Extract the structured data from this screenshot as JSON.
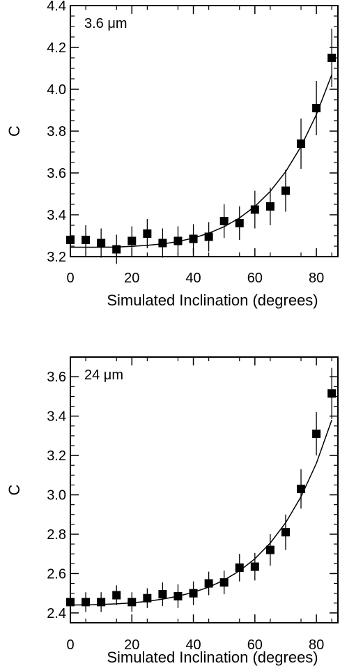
{
  "chart_data": [
    {
      "type": "scatter",
      "panel_label": "3.6 μm",
      "xlabel": "Simulated Inclination (degrees)",
      "ylabel": "C",
      "xlim": [
        0,
        87
      ],
      "ylim": [
        3.2,
        4.4
      ],
      "x_ticks": [
        0,
        20,
        40,
        60,
        80
      ],
      "y_ticks": [
        3.2,
        3.4,
        3.6,
        3.8,
        4.0,
        4.2,
        4.4
      ],
      "y_tick_labels": [
        "3.2",
        "3.4",
        "3.6",
        "3.8",
        "4.0",
        "4.2",
        "4.4"
      ],
      "series": [
        {
          "marker": "filled-square",
          "x": [
            0,
            5,
            10,
            15,
            20,
            25,
            30,
            35,
            40,
            45,
            50,
            55,
            60,
            65,
            70,
            75,
            80,
            85
          ],
          "y": [
            3.28,
            3.28,
            3.265,
            3.235,
            3.275,
            3.31,
            3.265,
            3.275,
            3.285,
            3.295,
            3.37,
            3.36,
            3.425,
            3.44,
            3.515,
            3.74,
            3.91,
            4.15
          ],
          "yerr": [
            0.06,
            0.07,
            0.07,
            0.07,
            0.07,
            0.07,
            0.07,
            0.07,
            0.07,
            0.07,
            0.08,
            0.08,
            0.09,
            0.09,
            0.1,
            0.12,
            0.13,
            0.14
          ]
        }
      ],
      "fit_curve": {
        "x": [
          0,
          5,
          10,
          15,
          20,
          25,
          30,
          35,
          40,
          45,
          50,
          55,
          60,
          65,
          70,
          75,
          80,
          85
        ],
        "y": [
          3.245,
          3.245,
          3.245,
          3.246,
          3.249,
          3.254,
          3.261,
          3.272,
          3.289,
          3.312,
          3.343,
          3.385,
          3.44,
          3.512,
          3.606,
          3.726,
          3.879,
          4.07
        ]
      }
    },
    {
      "type": "scatter",
      "panel_label": "24 μm",
      "xlabel": "Simulated Inclination (degrees)",
      "ylabel": "C",
      "xlim": [
        0,
        87
      ],
      "ylim": [
        2.35,
        3.7
      ],
      "x_ticks": [
        0,
        20,
        40,
        60,
        80
      ],
      "y_ticks": [
        2.4,
        2.6,
        2.8,
        3.0,
        3.2,
        3.4,
        3.6
      ],
      "y_tick_labels": [
        "2.4",
        "2.6",
        "2.8",
        "3.0",
        "3.2",
        "3.4",
        "3.6"
      ],
      "series": [
        {
          "marker": "filled-square",
          "x": [
            0,
            5,
            10,
            15,
            20,
            25,
            30,
            35,
            40,
            45,
            50,
            55,
            60,
            65,
            70,
            75,
            80,
            85
          ],
          "y": [
            2.455,
            2.455,
            2.455,
            2.49,
            2.455,
            2.475,
            2.495,
            2.485,
            2.5,
            2.55,
            2.555,
            2.63,
            2.635,
            2.72,
            2.81,
            3.03,
            3.31,
            3.515
          ],
          "yerr": [
            0.05,
            0.05,
            0.05,
            0.05,
            0.05,
            0.05,
            0.06,
            0.06,
            0.06,
            0.06,
            0.06,
            0.07,
            0.07,
            0.08,
            0.09,
            0.1,
            0.11,
            0.13
          ]
        }
      ],
      "fit_curve": {
        "x": [
          0,
          5,
          10,
          15,
          20,
          25,
          30,
          35,
          40,
          45,
          50,
          55,
          60,
          65,
          70,
          75,
          80,
          85
        ],
        "y": [
          2.44,
          2.441,
          2.443,
          2.446,
          2.451,
          2.459,
          2.47,
          2.485,
          2.505,
          2.531,
          2.567,
          2.614,
          2.675,
          2.755,
          2.858,
          2.99,
          3.16,
          3.38
        ]
      }
    }
  ]
}
